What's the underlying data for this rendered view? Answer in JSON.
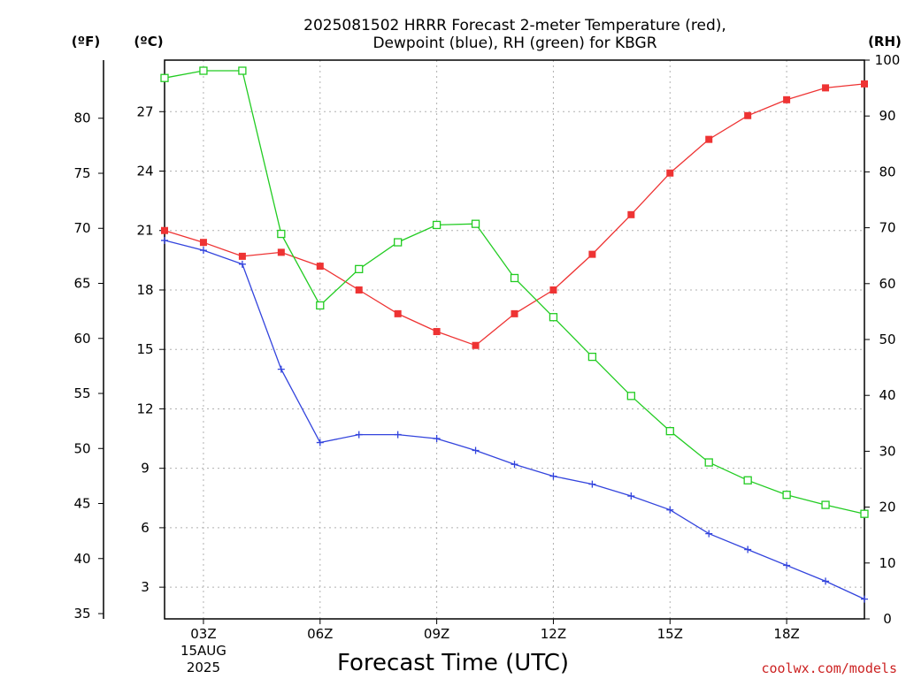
{
  "title_line1": "2025081502 HRRR Forecast 2-meter Temperature (red),",
  "title_line2": "Dewpoint (blue), RH (green) for KBGR",
  "unit_f": "(ºF)",
  "unit_c": "(ºC)",
  "unit_rh": "(RH)",
  "xlabel": "Forecast Time (UTC)",
  "credit": "coolwx.com/models",
  "colors": {
    "temperature": "#ee3333",
    "dewpoint": "#3344dd",
    "rh": "#22cc22",
    "credit": "#cc2222",
    "grid": "#b0b0b0"
  },
  "chart_data": {
    "type": "line",
    "x": [
      2,
      3,
      4,
      5,
      6,
      7,
      8,
      9,
      10,
      11,
      12,
      13,
      14,
      15,
      16,
      17,
      18,
      19,
      20
    ],
    "xlim": [
      2,
      20
    ],
    "x_ticks": [
      {
        "x": 3,
        "label": "03Z",
        "sub1": "15AUG",
        "sub2": "2025"
      },
      {
        "x": 6,
        "label": "06Z"
      },
      {
        "x": 9,
        "label": "09Z"
      },
      {
        "x": 12,
        "label": "12Z"
      },
      {
        "x": 15,
        "label": "15Z"
      },
      {
        "x": 18,
        "label": "18Z"
      }
    ],
    "ylim_c": [
      1.4,
      29.6
    ],
    "y_ticks_c": [
      "3",
      "6",
      "9",
      "12",
      "15",
      "18",
      "21",
      "24",
      "27"
    ],
    "y_ticks_f": [
      "35",
      "40",
      "45",
      "50",
      "55",
      "60",
      "65",
      "70",
      "75",
      "80"
    ],
    "ylim_rh": [
      0,
      100
    ],
    "y_ticks_rh": [
      "0",
      "10",
      "20",
      "30",
      "40",
      "50",
      "60",
      "70",
      "80",
      "90",
      "100"
    ],
    "grid": true,
    "series": [
      {
        "key": "temperature",
        "axis": "c",
        "marker": "filled-square",
        "values": [
          21.0,
          20.4,
          19.7,
          19.9,
          19.2,
          18.0,
          16.8,
          15.9,
          15.2,
          16.8,
          18.0,
          19.8,
          21.8,
          23.9,
          25.6,
          26.8,
          27.6,
          28.2,
          28.4
        ]
      },
      {
        "key": "dewpoint",
        "axis": "c",
        "marker": "plus",
        "values": [
          20.5,
          20.0,
          19.3,
          14.0,
          10.3,
          10.7,
          10.7,
          10.5,
          9.9,
          9.2,
          8.6,
          8.2,
          7.6,
          6.9,
          5.7,
          4.9,
          4.1,
          3.3,
          2.4
        ]
      },
      {
        "key": "rh",
        "axis": "rh",
        "marker": "open-square",
        "values": [
          96.8,
          98.1,
          98.1,
          68.9,
          56.1,
          62.6,
          67.4,
          70.5,
          70.7,
          61.0,
          54.0,
          46.9,
          39.9,
          33.6,
          28.0,
          24.8,
          22.2,
          20.4,
          18.8
        ]
      }
    ]
  }
}
